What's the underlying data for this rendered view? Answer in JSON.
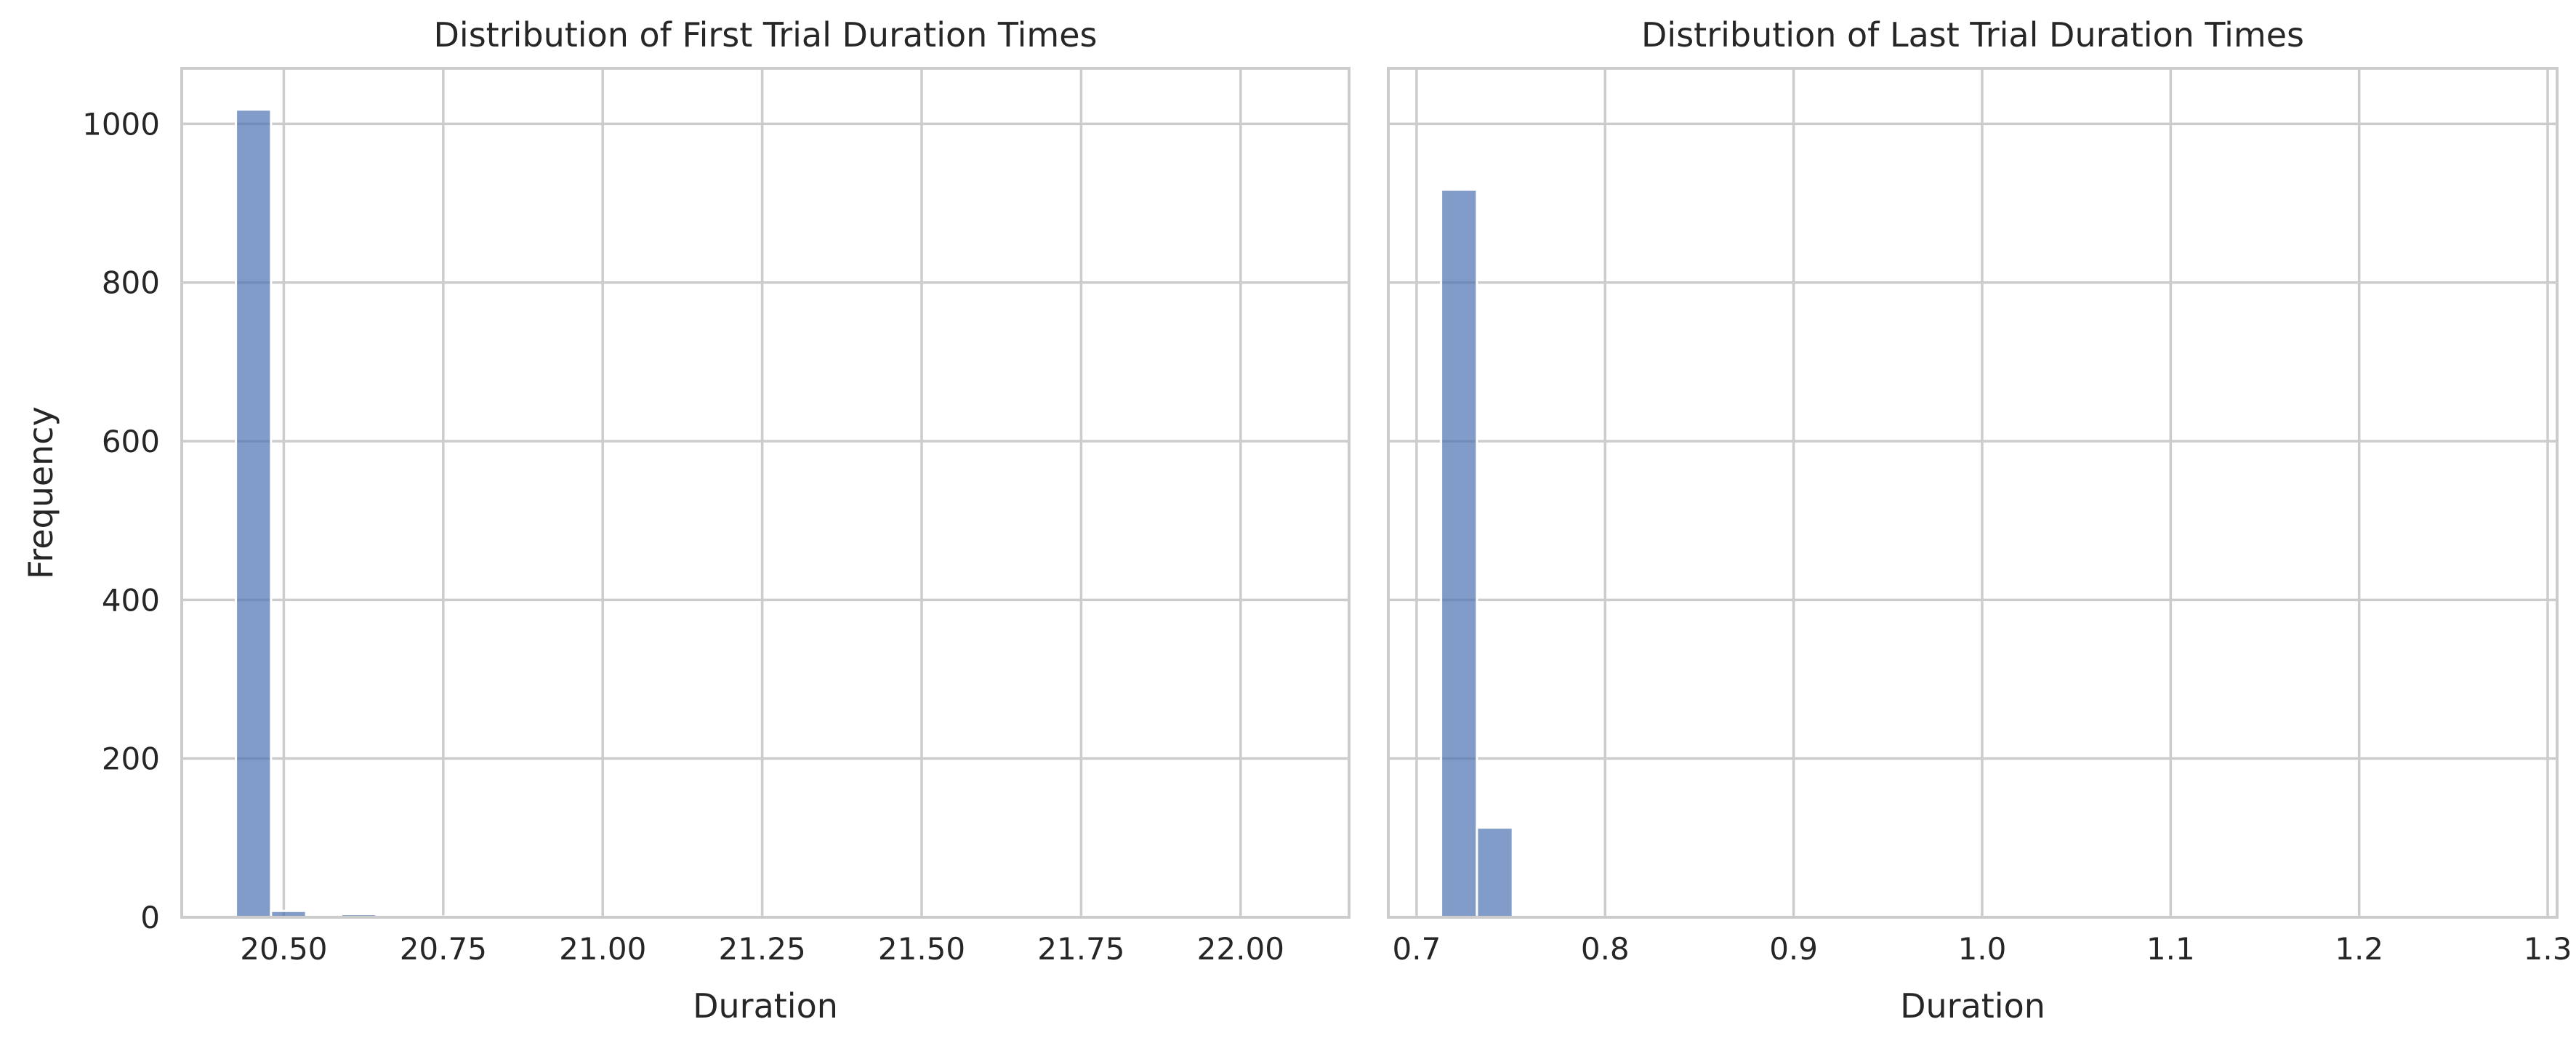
{
  "chart_data": [
    {
      "type": "bar",
      "title": "Distribution of First Trial Duration Times",
      "xlabel": "Duration",
      "ylabel": "Frequency",
      "xlim": [
        20.34,
        22.17
      ],
      "ylim": [
        0,
        1070
      ],
      "xticks": [
        20.5,
        20.75,
        21.0,
        21.25,
        21.5,
        21.75,
        22.0
      ],
      "xtick_labels": [
        "20.50",
        "20.75",
        "21.00",
        "21.25",
        "21.50",
        "21.75",
        "22.00"
      ],
      "yticks": [
        0,
        200,
        400,
        600,
        800,
        1000
      ],
      "ytick_labels": [
        "0",
        "200",
        "400",
        "600",
        "800",
        "1000"
      ],
      "grid": true,
      "color": "#4c72b0",
      "bins": [
        {
          "x0": 20.425,
          "x1": 20.48,
          "value": 1018
        },
        {
          "x0": 20.48,
          "x1": 20.535,
          "value": 8
        },
        {
          "x0": 20.535,
          "x1": 20.59,
          "value": 0
        },
        {
          "x0": 20.59,
          "x1": 20.645,
          "value": 4
        },
        {
          "x0": 20.645,
          "x1": 20.7,
          "value": 1
        },
        {
          "x0": 20.7,
          "x1": 20.755,
          "value": 1
        }
      ]
    },
    {
      "type": "bar",
      "title": "Distribution of Last Trial Duration Times",
      "xlabel": "Duration",
      "ylabel": "",
      "xlim": [
        0.685,
        1.305
      ],
      "ylim": [
        0,
        1070
      ],
      "xticks": [
        0.7,
        0.8,
        0.9,
        1.0,
        1.1,
        1.2,
        1.3
      ],
      "xtick_labels": [
        "0.7",
        "0.8",
        "0.9",
        "1.0",
        "1.1",
        "1.2",
        "1.3"
      ],
      "yticks": [
        0,
        200,
        400,
        600,
        800,
        1000
      ],
      "ytick_labels": [],
      "grid": true,
      "color": "#4c72b0",
      "bins": [
        {
          "x0": 0.713,
          "x1": 0.732,
          "value": 917
        },
        {
          "x0": 0.732,
          "x1": 0.751,
          "value": 113
        }
      ]
    }
  ]
}
